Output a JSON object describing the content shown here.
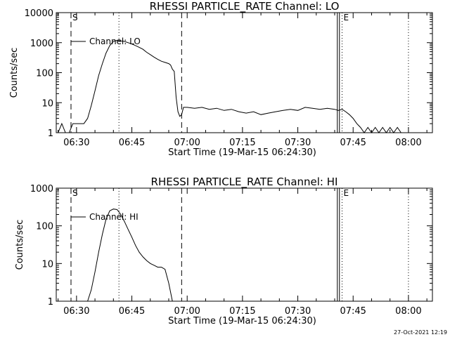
{
  "footer": {
    "timestamp": "27-Oct-2021 12:19"
  },
  "chart_data": [
    {
      "type": "line",
      "title": "RHESSI PARTICLE_RATE Channel: LO",
      "xlabel": "Start Time (19-Mar-15 06:24:30)",
      "ylabel": "Counts/sec",
      "yscale": "log",
      "ylim": [
        1,
        10000
      ],
      "xlim": [
        "06:24:30",
        "08:06:30"
      ],
      "xticks": [
        "06:30",
        "06:45",
        "07:00",
        "07:15",
        "07:30",
        "07:45",
        "08:00"
      ],
      "yticks": [
        "1",
        "10",
        "100",
        "1000",
        "10000"
      ],
      "legend": "Channel: LO",
      "series": [
        {
          "x": [
            "06:24:30",
            "06:25",
            "06:26",
            "06:27",
            "06:28",
            "06:29",
            "06:30",
            "06:31",
            "06:32",
            "06:33",
            "06:34",
            "06:35",
            "06:36",
            "06:37",
            "06:38",
            "06:39",
            "06:40",
            "06:41",
            "06:42",
            "06:43",
            "06:44",
            "06:45",
            "06:46",
            "06:47",
            "06:48",
            "06:49",
            "06:50",
            "06:51",
            "06:52",
            "06:53",
            "06:54",
            "06:55",
            "06:55:30",
            "06:56",
            "06:56:30",
            "06:57",
            "06:57:30",
            "06:58",
            "06:58:30",
            "06:59",
            "07:00",
            "07:02",
            "07:04",
            "07:06",
            "07:08",
            "07:10",
            "07:12",
            "07:14",
            "07:16",
            "07:18",
            "07:20",
            "07:22",
            "07:24",
            "07:26",
            "07:28",
            "07:30",
            "07:32",
            "07:34",
            "07:36",
            "07:38",
            "07:40",
            "07:41",
            "07:42",
            "07:43",
            "07:44",
            "07:45",
            "07:46",
            "07:47",
            "07:48",
            "07:49",
            "07:50",
            "07:51",
            "07:52",
            "07:53",
            "07:54",
            "07:55",
            "07:56",
            "07:57",
            "07:58"
          ],
          "y": [
            1,
            1,
            2,
            1,
            1,
            2,
            2,
            2,
            2,
            3,
            8,
            25,
            80,
            200,
            450,
            800,
            1100,
            1200,
            1150,
            1100,
            1000,
            900,
            800,
            700,
            600,
            480,
            400,
            330,
            280,
            240,
            220,
            200,
            180,
            130,
            110,
            15,
            5,
            3.5,
            4,
            7,
            7,
            6.5,
            7,
            6,
            6.5,
            5.5,
            6,
            5,
            4.5,
            5,
            4,
            4.5,
            5,
            5.5,
            6,
            5.5,
            7,
            6.5,
            6,
            6.5,
            6,
            5.5,
            6,
            5,
            4,
            3,
            2,
            1.5,
            1,
            1.5,
            1,
            1.5,
            1,
            1.5,
            1,
            1.5,
            1,
            1.5,
            1
          ]
        }
      ],
      "markers": [
        {
          "label": "S",
          "x": "06:28:30",
          "style": "dashed"
        },
        {
          "x": "06:41:30",
          "style": "dotted"
        },
        {
          "x": "06:58:30",
          "style": "dashed"
        },
        {
          "x": "07:41:00",
          "style": "double"
        },
        {
          "label": "E",
          "x": "07:42:00",
          "style": "dotted"
        },
        {
          "x": "08:00:00",
          "style": "dotted"
        }
      ]
    },
    {
      "type": "line",
      "title": "RHESSI PARTICLE_RATE Channel: HI",
      "xlabel": "Start Time (19-Mar-15 06:24:30)",
      "ylabel": "Counts/sec",
      "yscale": "log",
      "ylim": [
        1,
        1000
      ],
      "xlim": [
        "06:24:30",
        "08:06:30"
      ],
      "xticks": [
        "06:30",
        "06:45",
        "07:00",
        "07:15",
        "07:30",
        "07:45",
        "08:00"
      ],
      "yticks": [
        "1",
        "10",
        "100",
        "1000"
      ],
      "legend": "Channel: HI",
      "series": [
        {
          "x": [
            "06:33",
            "06:34",
            "06:35",
            "06:36",
            "06:37",
            "06:38",
            "06:39",
            "06:40",
            "06:41",
            "06:42",
            "06:43",
            "06:44",
            "06:45",
            "06:46",
            "06:47",
            "06:48",
            "06:49",
            "06:50",
            "06:51",
            "06:52",
            "06:53",
            "06:54",
            "06:55",
            "06:56"
          ],
          "y": [
            1,
            2,
            6,
            20,
            60,
            150,
            250,
            280,
            270,
            200,
            130,
            80,
            50,
            30,
            20,
            15,
            12,
            10,
            9,
            8,
            8,
            7,
            3,
            1
          ]
        }
      ],
      "markers": [
        {
          "label": "S",
          "x": "06:28:30",
          "style": "dashed"
        },
        {
          "x": "06:41:30",
          "style": "dotted"
        },
        {
          "x": "06:58:30",
          "style": "dashed"
        },
        {
          "x": "07:41:00",
          "style": "double"
        },
        {
          "label": "E",
          "x": "07:42:00",
          "style": "dotted"
        },
        {
          "x": "08:00:00",
          "style": "dotted"
        }
      ]
    }
  ]
}
